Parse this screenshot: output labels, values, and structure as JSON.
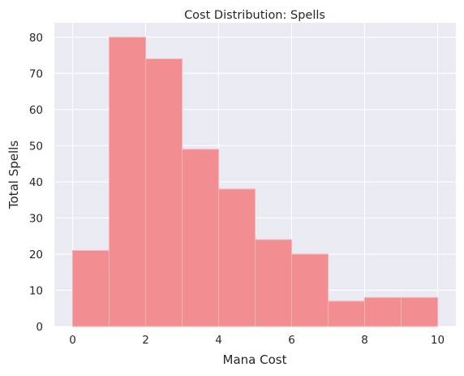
{
  "chart_data": {
    "type": "bar",
    "title": "Cost Distribution: Spells",
    "xlabel": "Mana Cost",
    "ylabel": "Total Spells",
    "bins": [
      {
        "start": 0,
        "end": 1,
        "value": 21
      },
      {
        "start": 1,
        "end": 2,
        "value": 80
      },
      {
        "start": 2,
        "end": 3,
        "value": 74
      },
      {
        "start": 3,
        "end": 4,
        "value": 49
      },
      {
        "start": 4,
        "end": 5,
        "value": 38
      },
      {
        "start": 5,
        "end": 6,
        "value": 24
      },
      {
        "start": 6,
        "end": 7,
        "value": 20
      },
      {
        "start": 7,
        "end": 8,
        "value": 7
      },
      {
        "start": 8,
        "end": 9,
        "value": 8
      },
      {
        "start": 9,
        "end": 10,
        "value": 8
      }
    ],
    "xlim": [
      -0.5,
      10.5
    ],
    "ylim": [
      0,
      84
    ],
    "xticks": [
      0,
      2,
      4,
      6,
      8,
      10
    ],
    "yticks": [
      0,
      10,
      20,
      30,
      40,
      50,
      60,
      70,
      80
    ],
    "grid": true,
    "colors": {
      "bar": "#f28e92",
      "bar_edge": "#f6b4b6",
      "plot_background": "#eaeaf2",
      "grid": "#ffffff",
      "text": "#262626"
    }
  }
}
